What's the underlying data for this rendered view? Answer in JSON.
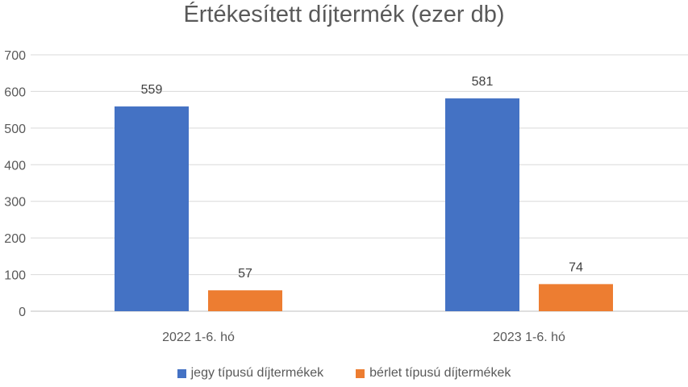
{
  "chart_data": {
    "type": "bar",
    "title": "Értékesített díjtermék (ezer db)",
    "categories": [
      "2022 1-6. hó",
      "2023 1-6. hó"
    ],
    "series": [
      {
        "name": "jegy típusú díjtermékek",
        "color": "#4472C4",
        "values": [
          559,
          581
        ]
      },
      {
        "name": "bérlet típusú díjtermékek",
        "color": "#ED7D31",
        "values": [
          57,
          74
        ]
      }
    ],
    "yticks": [
      "0",
      "100",
      "200",
      "300",
      "400",
      "500",
      "600",
      "700"
    ],
    "ylim": [
      0,
      700
    ],
    "grid": true,
    "legend": "bottom"
  }
}
